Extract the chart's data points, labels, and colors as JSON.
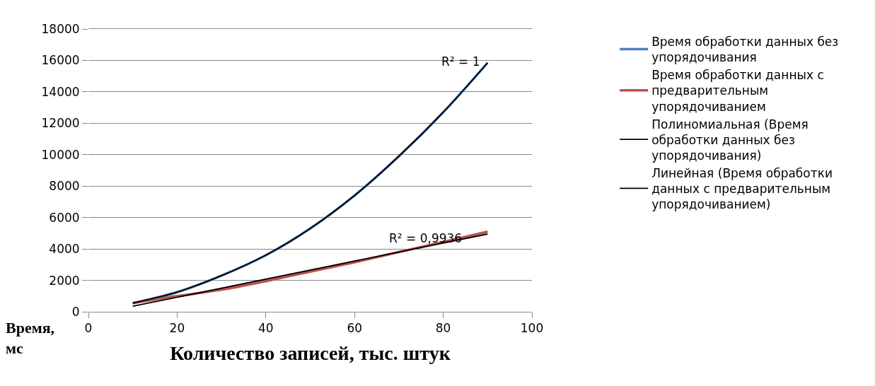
{
  "chart_data": {
    "type": "line",
    "xlabel": "Количество записей, тыс. штук",
    "ylabel": "Время, мс",
    "x": [
      10,
      20,
      30,
      40,
      50,
      60,
      70,
      80,
      90
    ],
    "xlim": [
      0,
      100
    ],
    "xticks": [
      0,
      20,
      40,
      60,
      80,
      100
    ],
    "ylim": [
      0,
      18000
    ],
    "yticks": [
      0,
      2000,
      4000,
      6000,
      8000,
      10000,
      12000,
      14000,
      16000,
      18000
    ],
    "grid": "y",
    "legend": "right",
    "marker": "none",
    "line_style": "solid",
    "series": [
      {
        "name": "Время обработки данных без упорядочивания",
        "color": "#4f81bd",
        "values": [
          550,
          1250,
          2300,
          3600,
          5300,
          7400,
          9900,
          12700,
          15850
        ]
      },
      {
        "name": "Время обработки данных с предварительным упорядочиванием",
        "color": "#c0504d",
        "values": [
          550,
          1000,
          1400,
          1950,
          2550,
          3150,
          3800,
          4450,
          5100
        ]
      },
      {
        "name": "Полиномиальная (Время обработки данных без упорядочивания)",
        "color": "#000000",
        "x": [
          10,
          20,
          30,
          40,
          50,
          60,
          70,
          80,
          90
        ],
        "values": [
          550,
          1250,
          2300,
          3600,
          5300,
          7400,
          9900,
          12700,
          15850
        ]
      },
      {
        "name": "Линейная (Время обработки данных с предварительным упорядочиванием)",
        "color": "#000000",
        "x": [
          10,
          90
        ],
        "values": [
          350,
          4950
        ]
      }
    ],
    "annotations": [
      "R² = 1",
      "R² = 0,9936"
    ]
  }
}
